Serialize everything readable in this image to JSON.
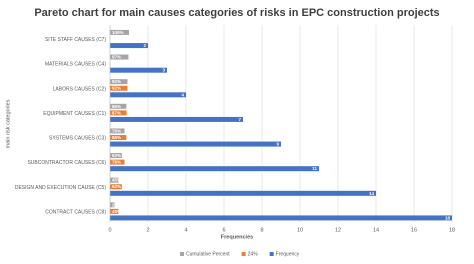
{
  "chart_data": {
    "type": "bar",
    "orientation": "horizontal",
    "title": "Pareto chart for main causes categories of risks in EPC construction projects",
    "x_label": "Frequencies",
    "y_label": "main risk categories",
    "categories": [
      "SITE STAFF CAUSES (C7)",
      "MATERIALS CAUSES (C4)",
      "LABORS CAUSES (C2)",
      "EQUIPMENT CAUSES (C1)",
      "SYSTEMS CAUSES (C3)",
      "SUBCONTRACTOR CAUSES (C6)",
      "DESIGN AND EXECUTION CAUSE (C5)",
      "CONTRACT CAUSES (C8)"
    ],
    "series": [
      {
        "name": "Cumulative Percent",
        "color": "#a5a5a5",
        "values": [
          1,
          0.97,
          0.92,
          0.86,
          0.76,
          0.62,
          0.45,
          0.24
        ],
        "value_labels": [
          "100%",
          "97%",
          "92%",
          "86%",
          "76%",
          "62%",
          "45%",
          "24%"
        ]
      },
      {
        "name": "24%",
        "color": "#ed7d31",
        "values": [
          null,
          null,
          0.92,
          0.87,
          0.86,
          0.76,
          0.62,
          0.45
        ],
        "value_labels": [
          null,
          null,
          "92%",
          "87%",
          "86%",
          "76%",
          "62%",
          "45%"
        ]
      },
      {
        "name": "Frequency",
        "color": "#4472c4",
        "values": [
          2,
          3,
          4,
          7,
          9,
          11,
          14,
          18
        ]
      }
    ],
    "xlim": [
      0,
      18
    ],
    "xticks": [
      0,
      2,
      4,
      6,
      8,
      10,
      12,
      14,
      16,
      18
    ],
    "grid": true,
    "legend": "bottom"
  }
}
